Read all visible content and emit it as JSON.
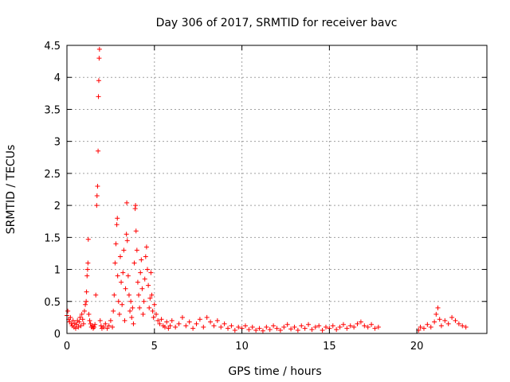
{
  "chart_data": {
    "type": "scatter",
    "title": "Day 306 of 2017, SRMTID for receiver bavc",
    "xlabel": "GPS time / hours",
    "ylabel": "SRMTID / TECUs",
    "xlim": [
      0,
      24
    ],
    "ylim": [
      0,
      4.5
    ],
    "xticks": [
      0,
      5,
      10,
      15,
      20
    ],
    "xtick_labels": [
      "0",
      "5",
      "10",
      "15",
      "20"
    ],
    "yticks": [
      0,
      0.5,
      1,
      1.5,
      2,
      2.5,
      3,
      3.5,
      4,
      4.5
    ],
    "ytick_labels": [
      "0",
      "0.5",
      "1",
      "1.5",
      "2",
      "2.5",
      "3",
      "3.5",
      "4",
      "4.5"
    ],
    "grid": true,
    "marker": "+",
    "series": [
      {
        "name": "SRMTID",
        "color": "#ff0000",
        "points": [
          [
            0.0,
            0.28
          ],
          [
            0.05,
            0.35
          ],
          [
            0.1,
            0.22
          ],
          [
            0.15,
            0.18
          ],
          [
            0.2,
            0.25
          ],
          [
            0.25,
            0.15
          ],
          [
            0.3,
            0.12
          ],
          [
            0.35,
            0.2
          ],
          [
            0.4,
            0.1
          ],
          [
            0.45,
            0.16
          ],
          [
            0.5,
            0.08
          ],
          [
            0.55,
            0.14
          ],
          [
            0.6,
            0.2
          ],
          [
            0.65,
            0.1
          ],
          [
            0.7,
            0.18
          ],
          [
            0.75,
            0.25
          ],
          [
            0.8,
            0.12
          ],
          [
            0.85,
            0.3
          ],
          [
            0.9,
            0.22
          ],
          [
            0.95,
            0.15
          ],
          [
            1.0,
            0.35
          ],
          [
            1.05,
            0.45
          ],
          [
            1.1,
            0.5
          ],
          [
            1.12,
            0.65
          ],
          [
            1.15,
            0.9
          ],
          [
            1.18,
            1.0
          ],
          [
            1.2,
            1.1
          ],
          [
            1.22,
            1.47
          ],
          [
            1.25,
            0.3
          ],
          [
            1.3,
            0.2
          ],
          [
            1.35,
            0.15
          ],
          [
            1.4,
            0.1
          ],
          [
            1.45,
            0.12
          ],
          [
            1.5,
            0.08
          ],
          [
            1.55,
            0.1
          ],
          [
            1.6,
            0.14
          ],
          [
            1.65,
            0.6
          ],
          [
            1.7,
            2.0
          ],
          [
            1.72,
            2.15
          ],
          [
            1.75,
            2.3
          ],
          [
            1.78,
            2.85
          ],
          [
            1.8,
            3.7
          ],
          [
            1.82,
            3.95
          ],
          [
            1.84,
            4.3
          ],
          [
            1.86,
            4.44
          ],
          [
            1.9,
            0.2
          ],
          [
            1.95,
            0.12
          ],
          [
            2.0,
            0.08
          ],
          [
            2.1,
            0.1
          ],
          [
            2.2,
            0.15
          ],
          [
            2.3,
            0.08
          ],
          [
            2.4,
            0.12
          ],
          [
            2.5,
            0.2
          ],
          [
            2.6,
            0.1
          ],
          [
            2.65,
            0.35
          ],
          [
            2.7,
            0.6
          ],
          [
            2.75,
            1.1
          ],
          [
            2.8,
            1.4
          ],
          [
            2.85,
            1.7
          ],
          [
            2.88,
            1.8
          ],
          [
            2.9,
            0.9
          ],
          [
            2.95,
            0.5
          ],
          [
            3.0,
            0.3
          ],
          [
            3.05,
            1.2
          ],
          [
            3.1,
            0.8
          ],
          [
            3.15,
            0.45
          ],
          [
            3.2,
            0.95
          ],
          [
            3.25,
            1.3
          ],
          [
            3.3,
            0.2
          ],
          [
            3.35,
            0.7
          ],
          [
            3.4,
            1.55
          ],
          [
            3.42,
            2.04
          ],
          [
            3.45,
            1.45
          ],
          [
            3.5,
            0.9
          ],
          [
            3.55,
            0.6
          ],
          [
            3.6,
            0.35
          ],
          [
            3.65,
            0.5
          ],
          [
            3.7,
            0.25
          ],
          [
            3.75,
            0.4
          ],
          [
            3.8,
            0.15
          ],
          [
            3.85,
            1.1
          ],
          [
            3.9,
            1.95
          ],
          [
            3.92,
            2.0
          ],
          [
            3.95,
            1.6
          ],
          [
            4.0,
            1.3
          ],
          [
            4.05,
            0.8
          ],
          [
            4.1,
            0.6
          ],
          [
            4.15,
            0.4
          ],
          [
            4.2,
            0.95
          ],
          [
            4.25,
            1.15
          ],
          [
            4.3,
            0.7
          ],
          [
            4.35,
            0.3
          ],
          [
            4.4,
            0.5
          ],
          [
            4.45,
            0.85
          ],
          [
            4.5,
            1.2
          ],
          [
            4.55,
            1.35
          ],
          [
            4.6,
            1.0
          ],
          [
            4.65,
            0.75
          ],
          [
            4.7,
            0.4
          ],
          [
            4.75,
            0.55
          ],
          [
            4.8,
            0.95
          ],
          [
            4.85,
            0.6
          ],
          [
            4.9,
            0.35
          ],
          [
            4.95,
            0.25
          ],
          [
            5.0,
            0.45
          ],
          [
            5.1,
            0.3
          ],
          [
            5.2,
            0.2
          ],
          [
            5.3,
            0.15
          ],
          [
            5.4,
            0.22
          ],
          [
            5.5,
            0.12
          ],
          [
            5.6,
            0.1
          ],
          [
            5.7,
            0.18
          ],
          [
            5.8,
            0.08
          ],
          [
            5.9,
            0.12
          ],
          [
            6.0,
            0.2
          ],
          [
            6.2,
            0.1
          ],
          [
            6.4,
            0.15
          ],
          [
            6.6,
            0.25
          ],
          [
            6.8,
            0.12
          ],
          [
            7.0,
            0.18
          ],
          [
            7.2,
            0.08
          ],
          [
            7.4,
            0.15
          ],
          [
            7.6,
            0.22
          ],
          [
            7.8,
            0.1
          ],
          [
            8.0,
            0.25
          ],
          [
            8.2,
            0.18
          ],
          [
            8.4,
            0.12
          ],
          [
            8.6,
            0.2
          ],
          [
            8.8,
            0.1
          ],
          [
            9.0,
            0.15
          ],
          [
            9.2,
            0.08
          ],
          [
            9.4,
            0.12
          ],
          [
            9.6,
            0.05
          ],
          [
            9.8,
            0.1
          ],
          [
            10.0,
            0.08
          ],
          [
            10.2,
            0.12
          ],
          [
            10.4,
            0.06
          ],
          [
            10.6,
            0.1
          ],
          [
            10.8,
            0.05
          ],
          [
            11.0,
            0.08
          ],
          [
            11.2,
            0.04
          ],
          [
            11.4,
            0.1
          ],
          [
            11.6,
            0.06
          ],
          [
            11.8,
            0.12
          ],
          [
            12.0,
            0.08
          ],
          [
            12.2,
            0.05
          ],
          [
            12.4,
            0.1
          ],
          [
            12.6,
            0.14
          ],
          [
            12.8,
            0.07
          ],
          [
            13.0,
            0.1
          ],
          [
            13.2,
            0.05
          ],
          [
            13.4,
            0.12
          ],
          [
            13.6,
            0.08
          ],
          [
            13.8,
            0.14
          ],
          [
            14.0,
            0.06
          ],
          [
            14.2,
            0.1
          ],
          [
            14.4,
            0.12
          ],
          [
            14.6,
            0.05
          ],
          [
            14.8,
            0.1
          ],
          [
            15.0,
            0.08
          ],
          [
            15.2,
            0.12
          ],
          [
            15.4,
            0.06
          ],
          [
            15.6,
            0.1
          ],
          [
            15.8,
            0.14
          ],
          [
            16.0,
            0.08
          ],
          [
            16.2,
            0.12
          ],
          [
            16.4,
            0.1
          ],
          [
            16.6,
            0.15
          ],
          [
            16.8,
            0.18
          ],
          [
            17.0,
            0.12
          ],
          [
            17.2,
            0.1
          ],
          [
            17.4,
            0.14
          ],
          [
            17.6,
            0.08
          ],
          [
            17.8,
            0.1
          ],
          [
            20.1,
            0.05
          ],
          [
            20.2,
            0.1
          ],
          [
            20.4,
            0.08
          ],
          [
            20.6,
            0.14
          ],
          [
            20.8,
            0.1
          ],
          [
            21.0,
            0.18
          ],
          [
            21.1,
            0.3
          ],
          [
            21.2,
            0.4
          ],
          [
            21.3,
            0.22
          ],
          [
            21.4,
            0.12
          ],
          [
            21.6,
            0.2
          ],
          [
            21.8,
            0.15
          ],
          [
            22.0,
            0.25
          ],
          [
            22.2,
            0.2
          ],
          [
            22.4,
            0.15
          ],
          [
            22.6,
            0.12
          ],
          [
            22.8,
            0.1
          ]
        ]
      }
    ]
  }
}
